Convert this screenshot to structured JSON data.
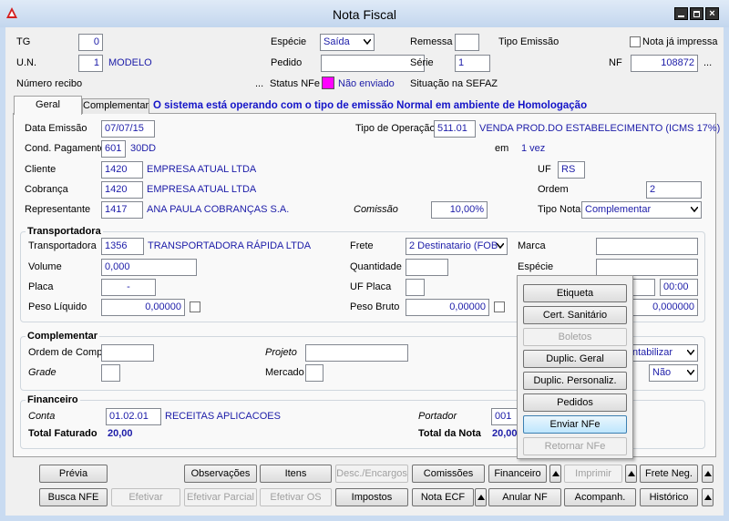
{
  "window": {
    "title": "Nota Fiscal"
  },
  "header": {
    "tg": {
      "label": "TG",
      "value": "0"
    },
    "un": {
      "label": "U.N.",
      "value": "1",
      "name": "MODELO"
    },
    "numero_recibo": {
      "label": "Número recibo",
      "button": "..."
    },
    "especie": {
      "label": "Espécie",
      "value": "Saída"
    },
    "pedido": {
      "label": "Pedido"
    },
    "status_nfe": {
      "label": "Status NFe",
      "value": "Não enviado"
    },
    "remessa": {
      "label": "Remessa"
    },
    "serie": {
      "label": "Série",
      "value": "1"
    },
    "situacao_sefaz": {
      "label": "Situação na SEFAZ"
    },
    "tipo_emissao": {
      "label": "Tipo Emissão"
    },
    "nota_ja_impressa": {
      "label": "Nota já impressa"
    },
    "nf": {
      "label": "NF",
      "value": "108872",
      "button": "..."
    }
  },
  "tabs": [
    "Geral",
    "Complementar"
  ],
  "banner": "O sistema está operando com o tipo de emissão Normal em ambiente de Homologação",
  "geral": {
    "data_emissao": {
      "label": "Data Emissão",
      "value": "07/07/15"
    },
    "tipo_operacao": {
      "label": "Tipo de Operação",
      "code": "511.01",
      "name": "VENDA PROD.DO ESTABELECIMENTO (ICMS 17%)"
    },
    "cond_pagamento": {
      "label": "Cond. Pagamento",
      "code": "601",
      "name": "30DD"
    },
    "parcelas": {
      "label": "em",
      "value": "1 vez"
    },
    "cliente": {
      "label": "Cliente",
      "code": "1420",
      "name": "EMPRESA ATUAL LTDA"
    },
    "uf": {
      "label": "UF",
      "value": "RS"
    },
    "cobranca": {
      "label": "Cobrança",
      "code": "1420",
      "name": "EMPRESA ATUAL LTDA"
    },
    "ordem": {
      "label": "Ordem",
      "value": "2"
    },
    "representante": {
      "label": "Representante",
      "code": "1417",
      "name": "ANA PAULA COBRANÇAS S.A."
    },
    "comissao": {
      "label": "Comissão",
      "value": "10,00%"
    },
    "tipo_nota": {
      "label": "Tipo Nota",
      "value": "Complementar"
    }
  },
  "transportadora": {
    "title": "Transportadora",
    "transportadora": {
      "label": "Transportadora",
      "code": "1356",
      "name": "TRANSPORTADORA RÁPIDA LTDA"
    },
    "frete": {
      "label": "Frete",
      "value": "2 Destinatario (FOB"
    },
    "marca": {
      "label": "Marca"
    },
    "volume": {
      "label": "Volume",
      "value": "0,000"
    },
    "quantidade": {
      "label": "Quantidade"
    },
    "especie": {
      "label": "Espécie"
    },
    "placa": {
      "label": "Placa",
      "value": "-"
    },
    "uf_placa": {
      "label": "UF Placa"
    },
    "hora": {
      "value": "00:00"
    },
    "peso_liquido": {
      "label": "Peso Líquido",
      "value": "0,00000"
    },
    "peso_bruto": {
      "label": "Peso Bruto",
      "value": "0,00000"
    },
    "valor": {
      "value": "0,000000"
    }
  },
  "complementar": {
    "title": "Complementar",
    "ordem_compra": {
      "label": "Ordem de Compra"
    },
    "projeto": {
      "label": "Projeto"
    },
    "contabilizar": {
      "value": "ntabilizar"
    },
    "grade": {
      "label": "Grade"
    },
    "mercado": {
      "label": "Mercado"
    },
    "opcao": {
      "value": "Não"
    }
  },
  "financeiro": {
    "title": "Financeiro",
    "conta": {
      "label": "Conta",
      "code": "01.02.01",
      "name": "RECEITAS APLICACOES"
    },
    "portador": {
      "label": "Portador",
      "code": "001"
    },
    "total_faturado": {
      "label": "Total Faturado",
      "value": "20,00"
    },
    "total_nota": {
      "label": "Total da Nota",
      "value": "20,00"
    }
  },
  "menu": [
    {
      "label": "Etiqueta"
    },
    {
      "label": "Cert. Sanitário"
    },
    {
      "label": "Boletos",
      "enabled": false
    },
    {
      "label": "Duplic. Geral"
    },
    {
      "label": "Duplic. Personaliz."
    },
    {
      "label": "Pedidos"
    },
    {
      "label": "Enviar NFe",
      "selected": true
    },
    {
      "label": "Retornar NFe",
      "enabled": false
    }
  ],
  "buttons": [
    [
      {
        "label": "Prévia"
      },
      {
        "label": "Observações"
      },
      {
        "label": "Itens"
      },
      {
        "label": "Desc./Encargos",
        "enabled": false
      },
      {
        "label": "Comissões"
      },
      {
        "label": "Financeiro"
      },
      {
        "label": "Imprimir",
        "enabled": false
      },
      {
        "label": "Frete Neg."
      }
    ],
    [
      {
        "label": "Busca NFE"
      },
      {
        "label": "Efetivar",
        "enabled": false
      },
      {
        "label": "Efetivar Parcial",
        "enabled": false
      },
      {
        "label": "Efetivar OS",
        "enabled": false
      },
      {
        "label": "Impostos"
      },
      {
        "label": "Nota ECF"
      },
      {
        "label": "Anular NF"
      },
      {
        "label": "Acompanh."
      },
      {
        "label": "Histórico"
      }
    ]
  ]
}
